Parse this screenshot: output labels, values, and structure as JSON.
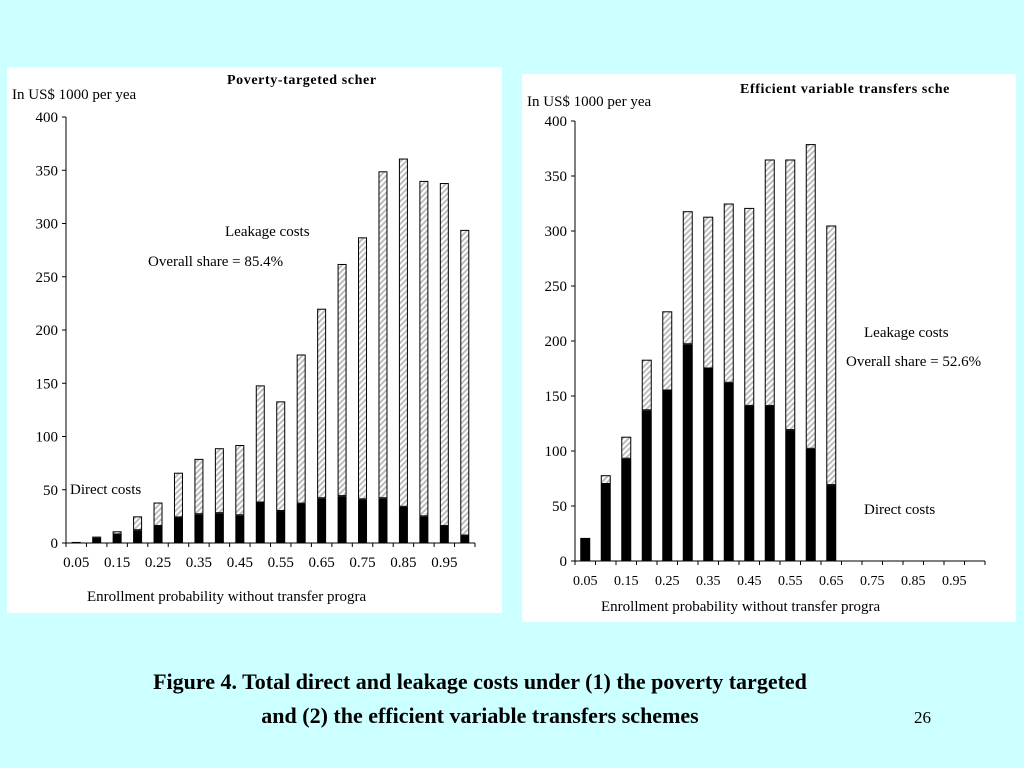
{
  "caption": {
    "line1": "Figure 4.  Total direct and leakage costs under (1) the poverty targeted",
    "line2": "and (2) the efficient variable transfers schemes"
  },
  "page_number": "26",
  "colors": {
    "background": "#ccffff",
    "panel": "#ffffff",
    "direct_costs": "#000000",
    "leakage_costs": "#bdbdbd"
  },
  "chart_data": [
    {
      "type": "bar",
      "stacked": true,
      "title": "Poverty-targeted scher",
      "ylabel": "In US$ 1000 per yea",
      "xlabel": "Enrollment probability without transfer progra",
      "ylim": [
        0,
        400
      ],
      "y_ticks": [
        "0",
        "50",
        "100",
        "150",
        "200",
        "250",
        "300",
        "350",
        "400"
      ],
      "x": [
        0.05,
        0.1,
        0.15,
        0.2,
        0.25,
        0.3,
        0.35,
        0.4,
        0.45,
        0.5,
        0.55,
        0.6,
        0.65,
        0.7,
        0.75,
        0.8,
        0.85,
        0.9,
        0.95,
        1.0
      ],
      "x_tick_labels": [
        "0.05",
        "0.15",
        "0.25",
        "0.35",
        "0.45",
        "0.55",
        "0.65",
        "0.75",
        "0.85",
        "0.95"
      ],
      "series": [
        {
          "name": "Direct costs",
          "values": [
            0,
            5,
            8,
            12,
            16,
            24,
            27,
            28,
            26,
            38,
            30,
            37,
            42,
            44,
            41,
            42,
            34,
            25,
            16,
            7
          ]
        },
        {
          "name": "Leakage costs",
          "values": [
            1,
            1,
            3,
            13,
            22,
            42,
            52,
            61,
            66,
            110,
            103,
            140,
            178,
            218,
            246,
            307,
            327,
            315,
            322,
            287
          ]
        }
      ],
      "annotations": {
        "leakage_label": "Leakage costs",
        "leakage_share": "Overall share = 85.4%",
        "direct_label": "Direct costs"
      },
      "grid": false,
      "legend": "none"
    },
    {
      "type": "bar",
      "stacked": true,
      "title": "Efficient variable transfers sche",
      "ylabel": "In US$ 1000 per yea",
      "xlabel": "Enrollment probability without transfer progra",
      "ylim": [
        0,
        400
      ],
      "y_ticks": [
        "0",
        "50",
        "100",
        "150",
        "200",
        "250",
        "300",
        "350",
        "400"
      ],
      "x": [
        0.05,
        0.1,
        0.15,
        0.2,
        0.25,
        0.3,
        0.35,
        0.4,
        0.45,
        0.5,
        0.55,
        0.6,
        0.65,
        0.7,
        0.75,
        0.8,
        0.85,
        0.9,
        0.95,
        1.0
      ],
      "x_tick_labels": [
        "0.05",
        "0.15",
        "0.25",
        "0.35",
        "0.45",
        "0.55",
        "0.65",
        "0.75",
        "0.85",
        "0.95"
      ],
      "series": [
        {
          "name": "Direct costs",
          "values": [
            20,
            70,
            93,
            137,
            155,
            197,
            175,
            162,
            141,
            141,
            119,
            102,
            69,
            0,
            0,
            0,
            0,
            0,
            0,
            0
          ]
        },
        {
          "name": "Leakage costs",
          "values": [
            1,
            8,
            20,
            46,
            72,
            121,
            138,
            163,
            180,
            224,
            246,
            277,
            236,
            0,
            0,
            0,
            0,
            0,
            0,
            0
          ]
        }
      ],
      "annotations": {
        "leakage_label": "Leakage costs",
        "leakage_share": "Overall share = 52.6%",
        "direct_label": "Direct costs"
      },
      "grid": false,
      "legend": "none"
    }
  ]
}
